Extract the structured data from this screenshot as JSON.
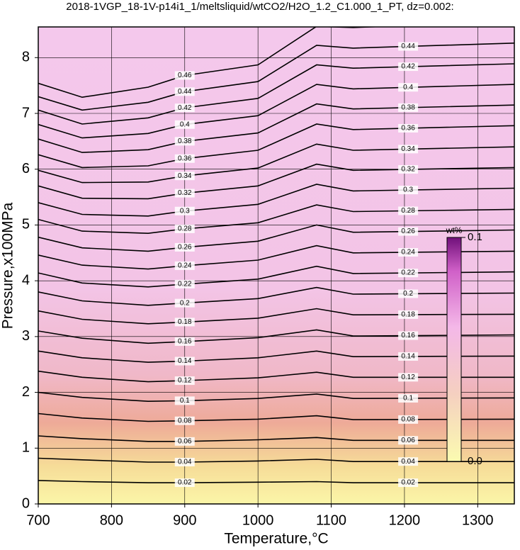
{
  "chart_data": {
    "type": "contour",
    "title": "2018-1VGP_18-1V-p14i1_1/meltsliquid/wtCO2/H2O_1.2_C1.000_1_PT, dz=0.002:",
    "x_label": "Temperature,°C",
    "y_label": "Pressure,x100MPa",
    "xlim": [
      700,
      1350
    ],
    "ylim": [
      0,
      8.55
    ],
    "xticks": [
      700,
      800,
      900,
      1000,
      1100,
      1200,
      1300
    ],
    "yticks": [
      0,
      1,
      2,
      3,
      4,
      5,
      6,
      7,
      8
    ],
    "grid": true,
    "line_color": "#000000",
    "contour_x": [
      700,
      760,
      850,
      900,
      1000,
      1080,
      1130,
      1350
    ],
    "contours": [
      {
        "level": 0.02,
        "values": [
          0.42,
          0.4,
          0.38,
          0.38,
          0.39,
          0.4,
          0.38,
          0.38
        ]
      },
      {
        "level": 0.04,
        "values": [
          0.82,
          0.79,
          0.75,
          0.75,
          0.77,
          0.8,
          0.76,
          0.76
        ]
      },
      {
        "level": 0.06,
        "values": [
          1.22,
          1.17,
          1.12,
          1.12,
          1.15,
          1.19,
          1.14,
          1.14
        ]
      },
      {
        "level": 0.08,
        "values": [
          1.62,
          1.54,
          1.48,
          1.49,
          1.52,
          1.58,
          1.51,
          1.52
        ]
      },
      {
        "level": 0.1,
        "values": [
          2.0,
          1.91,
          1.84,
          1.85,
          1.89,
          1.97,
          1.89,
          1.9
        ]
      },
      {
        "level": 0.12,
        "values": [
          2.38,
          2.27,
          2.19,
          2.21,
          2.26,
          2.36,
          2.27,
          2.27
        ]
      },
      {
        "level": 0.14,
        "values": [
          2.74,
          2.62,
          2.54,
          2.56,
          2.62,
          2.74,
          2.64,
          2.65
        ]
      },
      {
        "level": 0.16,
        "values": [
          3.1,
          2.97,
          2.88,
          2.91,
          2.98,
          3.12,
          3.01,
          3.03
        ]
      },
      {
        "level": 0.18,
        "values": [
          3.46,
          3.31,
          3.23,
          3.26,
          3.33,
          3.5,
          3.39,
          3.4
        ]
      },
      {
        "level": 0.2,
        "values": [
          3.8,
          3.64,
          3.56,
          3.6,
          3.68,
          3.88,
          3.76,
          3.78
        ]
      },
      {
        "level": 0.22,
        "values": [
          4.14,
          3.96,
          3.89,
          3.94,
          4.03,
          4.26,
          4.13,
          4.16
        ]
      },
      {
        "level": 0.24,
        "values": [
          4.46,
          4.28,
          4.21,
          4.27,
          4.37,
          4.63,
          4.5,
          4.53
        ]
      },
      {
        "level": 0.26,
        "values": [
          4.78,
          4.59,
          4.53,
          4.6,
          4.71,
          5.0,
          4.87,
          4.91
        ]
      },
      {
        "level": 0.28,
        "values": [
          5.1,
          4.89,
          4.85,
          4.93,
          5.04,
          5.36,
          5.24,
          5.28
        ]
      },
      {
        "level": 0.3,
        "values": [
          5.4,
          5.19,
          5.16,
          5.25,
          5.37,
          5.73,
          5.61,
          5.66
        ]
      },
      {
        "level": 0.32,
        "values": [
          5.7,
          5.48,
          5.47,
          5.57,
          5.7,
          6.09,
          5.98,
          6.03
        ]
      },
      {
        "level": 0.34,
        "values": [
          5.98,
          5.76,
          5.77,
          5.88,
          6.02,
          6.45,
          6.34,
          6.4
        ]
      },
      {
        "level": 0.36,
        "values": [
          6.26,
          6.03,
          6.06,
          6.19,
          6.34,
          6.81,
          6.71,
          6.78
        ]
      },
      {
        "level": 0.38,
        "values": [
          6.54,
          6.3,
          6.35,
          6.5,
          6.65,
          7.17,
          7.08,
          7.15
        ]
      },
      {
        "level": 0.4,
        "values": [
          6.8,
          6.56,
          6.64,
          6.8,
          6.96,
          7.52,
          7.44,
          7.52
        ]
      },
      {
        "level": 0.42,
        "values": [
          7.06,
          6.81,
          6.92,
          7.1,
          7.27,
          7.87,
          7.81,
          7.89
        ]
      },
      {
        "level": 0.44,
        "values": [
          7.3,
          7.06,
          7.2,
          7.39,
          7.57,
          8.22,
          8.17,
          8.26
        ]
      },
      {
        "level": 0.46,
        "values": [
          7.54,
          7.29,
          7.47,
          7.68,
          7.87,
          8.56,
          8.54,
          8.64
        ]
      }
    ],
    "colorbar": {
      "label": "wt%",
      "ticks": [
        {
          "value": 0,
          "label": "0.0"
        },
        0.1
      ]
    }
  }
}
